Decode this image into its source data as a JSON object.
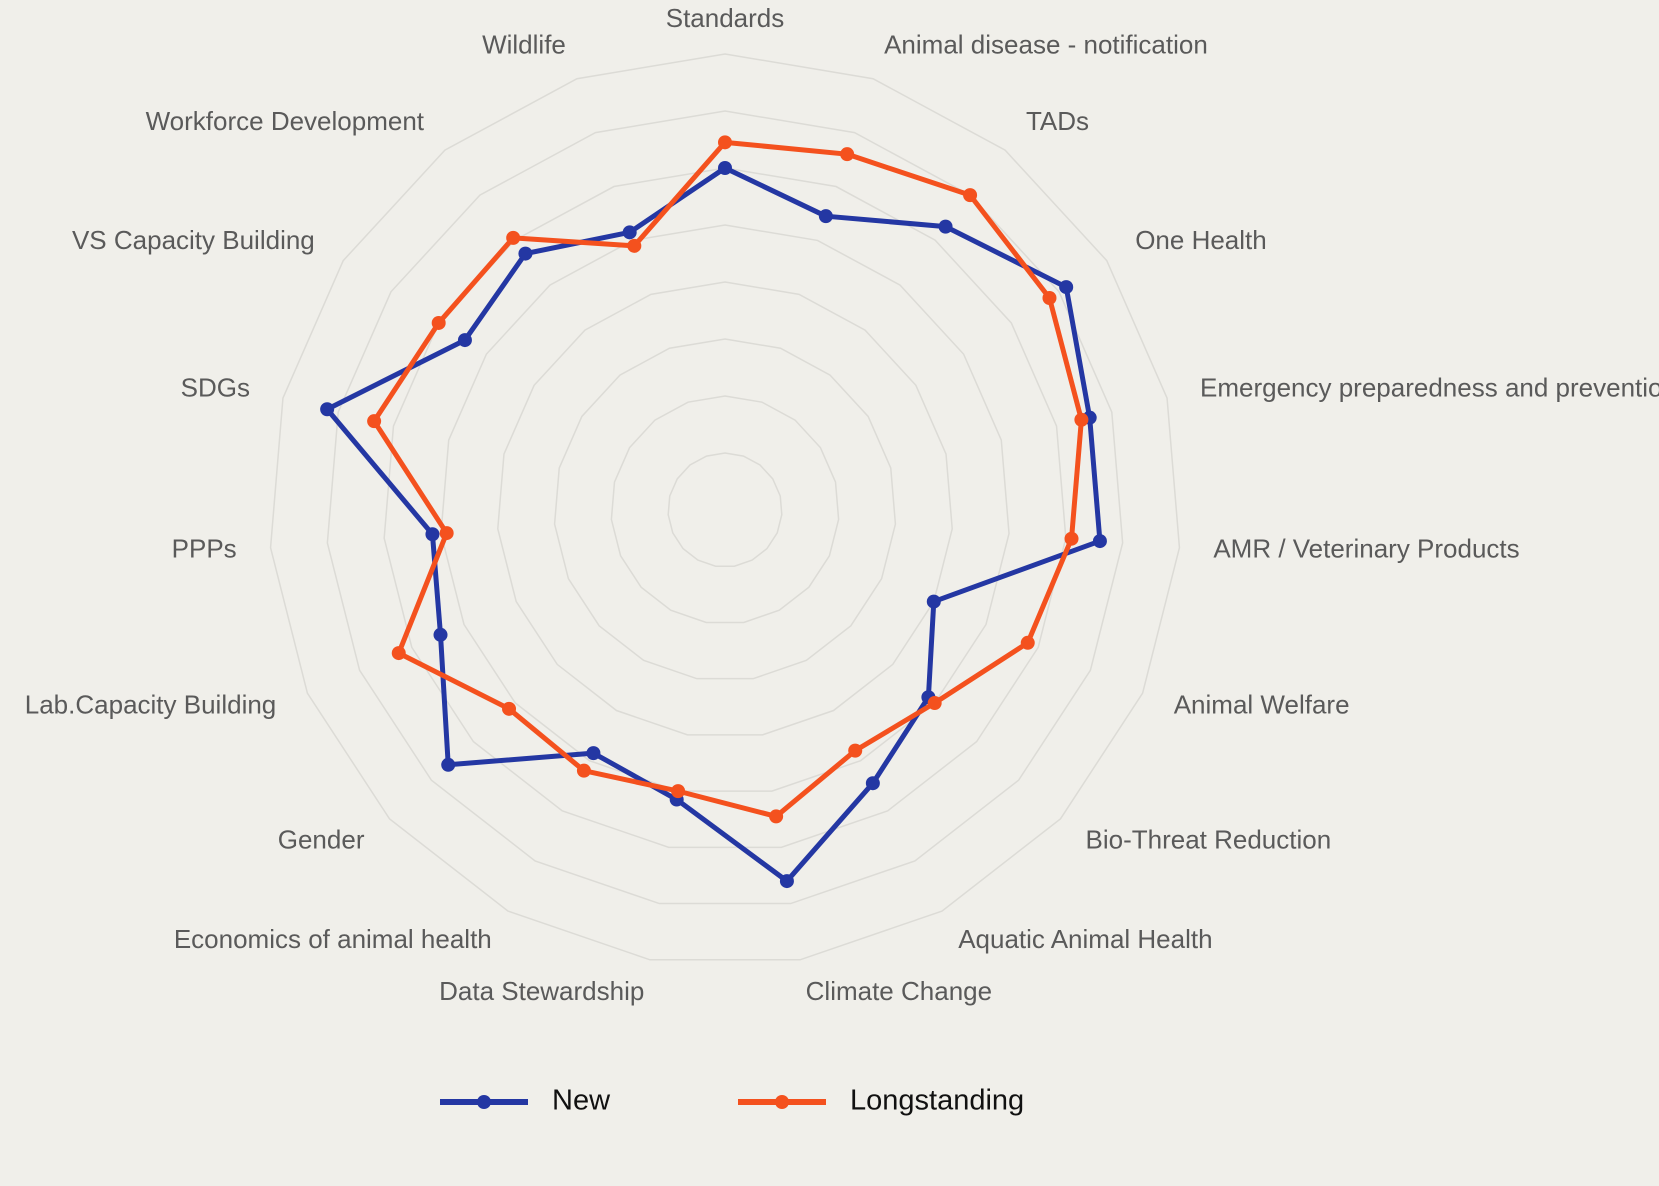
{
  "chart_data": {
    "type": "radar",
    "categories": [
      "Standards",
      "Animal disease  - notification",
      "TADs",
      "One Health",
      "Emergency preparedness and prevention",
      "AMR / Veterinary Products",
      "Animal Welfare",
      "Bio-Threat Reduction",
      "Aquatic Animal Health",
      "Climate Change",
      "Data Stewardship",
      "Economics of animal health",
      "Gender",
      "Lab.Capacity Building",
      "PPPs",
      "SDGs",
      "VS Capacity Building",
      "Workforce Development",
      "Wildlife"
    ],
    "series": [
      {
        "name": "New",
        "color": "#2437a3",
        "values": [
          6.0,
          5.45,
          6.3,
          7.15,
          6.6,
          6.6,
          4.0,
          4.85,
          5.45,
          6.6,
          5.15,
          4.85,
          6.6,
          5.45,
          5.15,
          7.2,
          5.45,
          5.7,
          5.15
        ]
      },
      {
        "name": "Longstanding",
        "color": "#f4511e",
        "values": [
          6.45,
          6.6,
          7.0,
          6.8,
          6.45,
          6.1,
          5.8,
          5.0,
          4.8,
          5.45,
          5.0,
          5.2,
          5.15,
          6.25,
          4.9,
          6.35,
          6.0,
          6.05,
          4.9
        ]
      }
    ],
    "ylim": [
      0,
      8
    ],
    "yticks": [
      1,
      2,
      3,
      4,
      5,
      6,
      7,
      8
    ],
    "grid": true,
    "legend": "bottom"
  }
}
